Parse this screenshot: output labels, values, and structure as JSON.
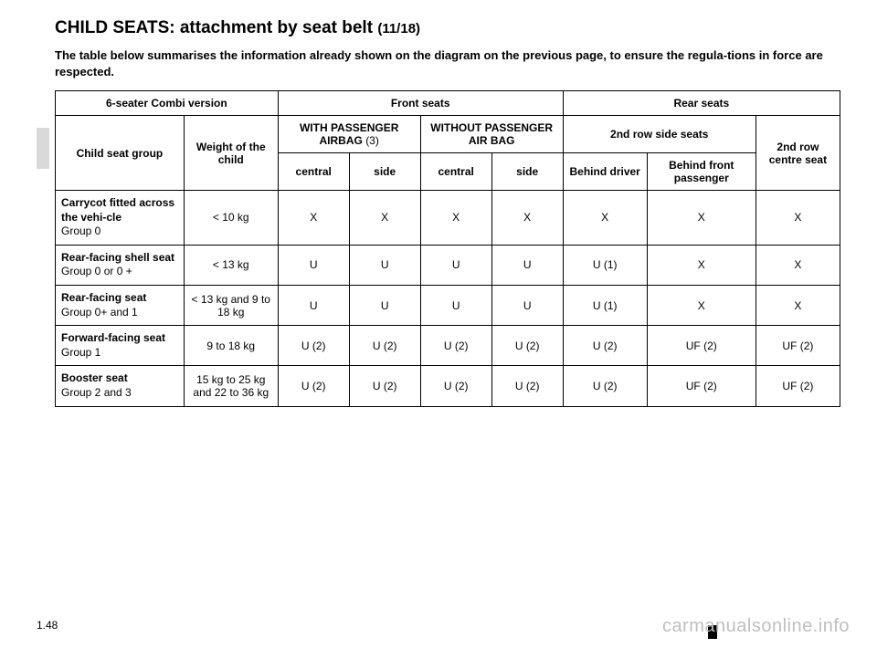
{
  "title_main": "CHILD SEATS: attachment by seat belt ",
  "title_sub": "(11/18)",
  "intro": "The table below summarises the information already shown on the diagram on the previous page, to ensure the regula-tions in force are respected.",
  "headers": {
    "variant": "6-seater Combi version",
    "front": "Front seats",
    "rear": "Rear seats",
    "group": "Child seat group",
    "weight": "Weight of the child",
    "with_airbag": "WITH PASSENGER AIRBAG ",
    "with_airbag_note": "(3)",
    "without_airbag": "WITHOUT PASSENGER AIR BAG",
    "row2_side": "2nd row side seats",
    "row2_centre": "2nd row centre seat",
    "central": "central",
    "side": "side",
    "behind_driver": "Behind driver",
    "behind_pass": "Behind front passenger"
  },
  "rows": [
    {
      "label_bold": "Carrycot fitted across the vehi-cle",
      "label_plain": "Group 0",
      "weight": "< 10 kg",
      "c": [
        "X",
        "X",
        "X",
        "X",
        "X",
        "X",
        "X"
      ]
    },
    {
      "label_bold": "Rear-facing shell seat",
      "label_plain": "Group 0 or 0 +",
      "weight": "< 13 kg",
      "c": [
        "U",
        "U",
        "U",
        "U",
        "U (1)",
        "X",
        "X"
      ]
    },
    {
      "label_bold": "Rear-facing seat",
      "label_plain": "Group 0+ and 1",
      "weight": "< 13 kg and 9 to 18 kg",
      "c": [
        "U",
        "U",
        "U",
        "U",
        "U (1)",
        "X",
        "X"
      ]
    },
    {
      "label_bold": "Forward-facing seat",
      "label_plain": "Group 1",
      "weight": "9 to 18 kg",
      "c": [
        "U (2)",
        "U (2)",
        "U (2)",
        "U (2)",
        "U (2)",
        "UF (2)",
        "UF (2)"
      ]
    },
    {
      "label_bold": "Booster seat",
      "label_plain": "Group 2 and 3",
      "weight": "15 kg to 25 kg and 22 to 36 kg",
      "c": [
        "U (2)",
        "U (2)",
        "U (2)",
        "U (2)",
        "U (2)",
        "UF (2)",
        "UF (2)"
      ]
    }
  ],
  "page_num": "1.48",
  "watermark": "carmanualsonline.info",
  "colors": {
    "text": "#000000",
    "background": "#ffffff",
    "tab": "#d9d9d9",
    "watermark": "#bfbfbf"
  },
  "fonts": {
    "family": "Arial",
    "title_size_pt": 19,
    "body_size_pt": 12
  }
}
